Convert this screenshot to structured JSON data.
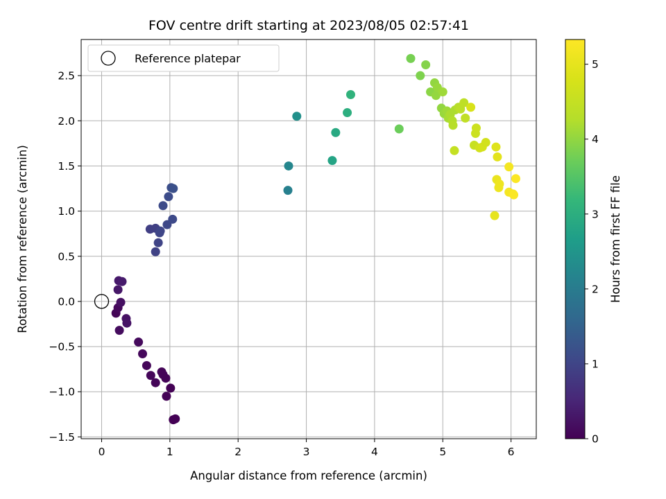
{
  "chart_data": {
    "type": "scatter",
    "title": "FOV centre drift starting at 2023/08/05 02:57:41",
    "xlabel": "Angular distance from reference (arcmin)",
    "ylabel": "Rotation from reference (arcmin)",
    "xlim": [
      -0.3,
      6.37
    ],
    "ylim": [
      -1.52,
      2.9
    ],
    "xticks": [
      0,
      1,
      2,
      3,
      4,
      5,
      6
    ],
    "yticks": [
      -1.5,
      -1.0,
      -0.5,
      0.0,
      0.5,
      1.0,
      1.5,
      2.0,
      2.5
    ],
    "xtick_labels": [
      "0",
      "1",
      "2",
      "3",
      "4",
      "5",
      "6"
    ],
    "ytick_labels": [
      "−1.5",
      "−1.0",
      "−0.5",
      "0.0",
      "0.5",
      "1.0",
      "1.5",
      "2.0",
      "2.5"
    ],
    "grid": true,
    "colormap": "viridis",
    "legend": {
      "position": "upper-left",
      "entries": [
        {
          "label": "Reference platepar",
          "marker": "hollow-circle",
          "x": 0,
          "y": 0
        }
      ]
    },
    "colorbar": {
      "label": "Hours from first FF file",
      "range": [
        0,
        5.33
      ],
      "ticks": [
        0,
        1,
        2,
        3,
        4,
        5
      ],
      "tick_labels": [
        "0",
        "1",
        "2",
        "3",
        "4",
        "5"
      ]
    },
    "series": [
      {
        "points": [
          [
            0.21,
            -0.13,
            0.05
          ],
          [
            0.24,
            -0.07,
            0.1
          ],
          [
            0.26,
            -0.32,
            0.15
          ],
          [
            0.28,
            -0.01,
            0.2
          ],
          [
            0.36,
            -0.19,
            0.22
          ],
          [
            0.37,
            -0.24,
            0.25
          ],
          [
            0.24,
            0.13,
            0.3
          ],
          [
            0.25,
            0.23,
            0.32
          ],
          [
            0.3,
            0.22,
            0.35
          ],
          [
            0.54,
            -0.45,
            0.12
          ],
          [
            0.6,
            -0.58,
            0.1
          ],
          [
            0.66,
            -0.71,
            0.08
          ],
          [
            0.72,
            -0.82,
            0.07
          ],
          [
            0.79,
            -0.9,
            0.06
          ],
          [
            0.88,
            -0.78,
            0.05
          ],
          [
            0.9,
            -0.81,
            0.04
          ],
          [
            0.94,
            -0.85,
            0.04
          ],
          [
            0.95,
            -1.05,
            0.03
          ],
          [
            1.01,
            -0.96,
            0.02
          ],
          [
            1.05,
            -1.31,
            0.01
          ],
          [
            1.08,
            -1.3,
            0.01
          ],
          [
            0.71,
            0.8,
            0.9
          ],
          [
            0.79,
            0.81,
            0.92
          ],
          [
            0.79,
            0.55,
            0.95
          ],
          [
            0.83,
            0.65,
            0.98
          ],
          [
            0.85,
            0.76,
            1.0
          ],
          [
            0.86,
            0.78,
            1.02
          ],
          [
            0.96,
            0.85,
            1.05
          ],
          [
            1.04,
            0.91,
            1.08
          ],
          [
            0.9,
            1.06,
            1.1
          ],
          [
            0.98,
            1.16,
            1.12
          ],
          [
            1.02,
            1.26,
            1.15
          ],
          [
            1.05,
            1.25,
            1.18
          ],
          [
            2.73,
            1.23,
            2.1
          ],
          [
            2.74,
            1.5,
            2.2
          ],
          [
            2.86,
            2.05,
            2.4
          ],
          [
            3.38,
            1.56,
            2.8
          ],
          [
            3.43,
            1.87,
            2.9
          ],
          [
            3.6,
            2.09,
            3.0
          ],
          [
            3.65,
            2.29,
            3.1
          ],
          [
            4.36,
            1.91,
            3.7
          ],
          [
            4.53,
            2.69,
            3.8
          ],
          [
            4.67,
            2.5,
            3.85
          ],
          [
            4.75,
            2.62,
            3.9
          ],
          [
            4.82,
            2.32,
            3.95
          ],
          [
            4.88,
            2.42,
            4.0
          ],
          [
            4.9,
            2.28,
            4.02
          ],
          [
            4.92,
            2.37,
            4.05
          ],
          [
            5.0,
            2.32,
            4.1
          ],
          [
            4.98,
            2.14,
            4.0
          ],
          [
            5.02,
            2.08,
            4.05
          ],
          [
            5.06,
            2.11,
            4.1
          ],
          [
            5.08,
            2.03,
            4.15
          ],
          [
            5.11,
            2.07,
            4.2
          ],
          [
            5.14,
            2.0,
            4.25
          ],
          [
            5.15,
            1.95,
            4.3
          ],
          [
            5.18,
            2.12,
            4.2
          ],
          [
            5.23,
            2.15,
            4.3
          ],
          [
            5.26,
            2.13,
            4.35
          ],
          [
            5.31,
            2.2,
            4.4
          ],
          [
            5.33,
            2.03,
            4.45
          ],
          [
            5.17,
            1.67,
            4.5
          ],
          [
            5.41,
            2.15,
            4.8
          ],
          [
            5.46,
            1.73,
            4.55
          ],
          [
            5.48,
            1.86,
            4.6
          ],
          [
            5.49,
            1.92,
            4.62
          ],
          [
            5.54,
            1.7,
            4.7
          ],
          [
            5.58,
            1.71,
            4.75
          ],
          [
            5.63,
            1.76,
            4.7
          ],
          [
            5.78,
            1.71,
            4.9
          ],
          [
            5.8,
            1.6,
            4.95
          ],
          [
            5.76,
            0.95,
            5.0
          ],
          [
            5.79,
            1.35,
            5.05
          ],
          [
            5.82,
            1.26,
            5.1
          ],
          [
            5.83,
            1.3,
            5.12
          ],
          [
            5.97,
            1.49,
            5.2
          ],
          [
            5.97,
            1.21,
            5.22
          ],
          [
            6.03,
            1.19,
            5.25
          ],
          [
            6.04,
            1.18,
            5.28
          ],
          [
            6.07,
            1.36,
            5.3
          ]
        ]
      }
    ]
  }
}
